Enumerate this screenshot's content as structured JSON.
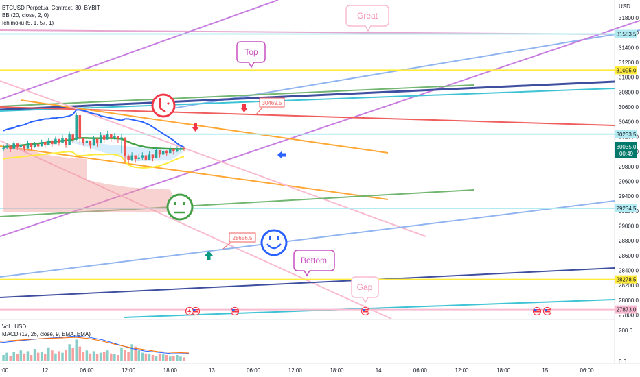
{
  "legend": {
    "symbol_line": "BTCUSD Perpetual Contract, 30, BYBIT",
    "bb_line": "BB (20, close, 2, 0)",
    "ichimoku_line": "Ichimoku (5, 1, 57, 1)",
    "vol_line": "Vol · USD",
    "macd_line": "MACD (12, 26, close, 9, EMA, EMA)"
  },
  "currency_label": "USD",
  "price_tag": {
    "value": "30035.0",
    "countdown": "00:49"
  },
  "callouts": [
    "Great",
    "Top",
    "Bottom",
    "Gap"
  ],
  "price_notes": [
    "30469.5",
    "28656.5"
  ],
  "colors": {
    "up": "#26a69a",
    "down": "#ef5350",
    "upper_band": "#2962ff",
    "mid_band": "#43a047",
    "lower_band": "#ffeb3b",
    "cloud": "#ef9a9a",
    "callout": "#c850c0",
    "great_callout": "#f48fb1",
    "price_tag": "#00796b"
  },
  "chart_data": {
    "type": "line",
    "symbol": "BTCUSD Perpetual Contract",
    "interval": "30",
    "exchange": "BYBIT",
    "price_axis": {
      "ticks": [
        31800,
        31600,
        31400,
        31200,
        31000,
        30800,
        30600,
        30400,
        30200,
        30000,
        29800,
        29600,
        29400,
        29200,
        29000,
        28800,
        28600,
        28400,
        28200,
        28000,
        27800
      ],
      "tick_labels": [
        "31800.0",
        "31600.0",
        "31400.0",
        "31200.0",
        "31000.0",
        "30800.0",
        "30600.0",
        "30400.0",
        "30200.0",
        "30000.0",
        "29800.0",
        "29600.0",
        "29400.0",
        "29200.0",
        "29000.0",
        "28800.0",
        "28600.0",
        "28400.0",
        "28200.0",
        "28000.0",
        "27800.0"
      ],
      "range": [
        27740,
        32040
      ]
    },
    "marked_levels": [
      {
        "label": "31583.5",
        "value": 31583.5,
        "color": "#b2ebf2"
      },
      {
        "label": "31095.0",
        "value": 31095.0,
        "color": "#ffeb3b"
      },
      {
        "label": "30233.5",
        "value": 30233.5,
        "color": "#b2ebf2"
      },
      {
        "label": "29234.5",
        "value": 29234.5,
        "color": "#b2ebf2"
      },
      {
        "label": "28278.5",
        "value": 28278.5,
        "color": "#ffeb3b"
      },
      {
        "label": "27873.0",
        "value": 27873.0,
        "color": "#f8bbd0"
      }
    ],
    "time_axis": {
      "labels": [
        ":00",
        "12",
        "06:00",
        "12:00",
        "18:00",
        "13",
        "06:00",
        "12:00",
        "18:00",
        "14",
        "06:00",
        "12:00",
        "18:00",
        "15",
        "06:00"
      ],
      "bar_index": [
        -1,
        12,
        24,
        36,
        48,
        60,
        72,
        84,
        96,
        108,
        120,
        132,
        144,
        156,
        168
      ],
      "bar_range": [
        -1,
        176
      ]
    },
    "candles": {
      "close": [
        30050,
        30080,
        30030,
        30110,
        30060,
        30090,
        30040,
        30120,
        30060,
        30100,
        30070,
        30130,
        30090,
        30150,
        30100,
        30170,
        30120,
        30180,
        30090,
        30230,
        30160,
        30490,
        30180,
        30120,
        30150,
        30080,
        30170,
        30110,
        30220,
        30160,
        30240,
        30180,
        30210,
        30170,
        30190,
        29940,
        29880,
        29950,
        29900,
        29920,
        29950,
        29880,
        29960,
        29910,
        30020,
        29960,
        30010,
        29980,
        30040,
        30000,
        30030,
        30045,
        30035
      ],
      "high": [
        30090,
        30110,
        30070,
        30140,
        30100,
        30120,
        30080,
        30150,
        30100,
        30130,
        30110,
        30160,
        30130,
        30180,
        30140,
        30200,
        30160,
        30220,
        30150,
        30270,
        30200,
        30520,
        30220,
        30170,
        30190,
        30130,
        30210,
        30150,
        30260,
        30200,
        30280,
        30220,
        30250,
        30210,
        30230,
        30020,
        29960,
        29990,
        29950,
        29970,
        29990,
        29930,
        30000,
        29960,
        30060,
        30010,
        30050,
        30020,
        30080,
        30040,
        30070,
        30060,
        30055
      ],
      "low": [
        30010,
        30030,
        29990,
        30060,
        30020,
        30040,
        30000,
        30070,
        30020,
        30050,
        30030,
        30080,
        30050,
        30110,
        30060,
        30120,
        30080,
        30140,
        30050,
        30160,
        30120,
        30150,
        30100,
        30080,
        30090,
        30040,
        30110,
        30060,
        30160,
        30110,
        30190,
        30130,
        30160,
        30120,
        29980,
        29860,
        29840,
        29870,
        29850,
        29870,
        29890,
        29850,
        29900,
        29870,
        29960,
        29920,
        29970,
        29940,
        29990,
        29960,
        29990,
        30000,
        30010
      ],
      "up_color": "#26a69a",
      "down_color": "#ef5350"
    },
    "bollinger": {
      "upper": [
        30280,
        30300,
        30310,
        30320,
        30340,
        30350,
        30360,
        30380,
        30400,
        30410,
        30420,
        30430,
        30440,
        30440,
        30450,
        30450,
        30460,
        30460,
        30470,
        30480,
        30500,
        30560,
        30560,
        30550,
        30540,
        30520,
        30510,
        30500,
        30480,
        30470,
        30460,
        30450,
        30440,
        30430,
        30420,
        30440,
        30440,
        30430,
        30420,
        30410,
        30400,
        30380,
        30360,
        30330,
        30300,
        30270,
        30240,
        30210,
        30180,
        30150,
        30110,
        30080,
        30060
      ],
      "basis": [
        30060,
        30065,
        30070,
        30075,
        30080,
        30085,
        30090,
        30095,
        30100,
        30105,
        30110,
        30115,
        30120,
        30125,
        30130,
        30135,
        30140,
        30145,
        30150,
        30155,
        30160,
        30180,
        30182,
        30182,
        30182,
        30180,
        30180,
        30178,
        30180,
        30180,
        30182,
        30180,
        30178,
        30175,
        30170,
        30150,
        30130,
        30110,
        30095,
        30080,
        30070,
        30060,
        30055,
        30050,
        30045,
        30042,
        30040,
        30038,
        30036,
        30035,
        30034,
        30034,
        30034
      ],
      "lower": [
        29900,
        29910,
        29915,
        29920,
        29925,
        29930,
        29935,
        29940,
        29945,
        29950,
        29955,
        29960,
        29965,
        29970,
        29975,
        29980,
        29985,
        29990,
        29995,
        30000,
        29990,
        29950,
        29945,
        29945,
        29950,
        29955,
        29960,
        29960,
        29960,
        29960,
        29965,
        29965,
        29960,
        29950,
        29930,
        29870,
        29820,
        29800,
        29790,
        29785,
        29780,
        29782,
        29785,
        29790,
        29800,
        29810,
        29825,
        29840,
        29860,
        29880,
        29900,
        29920,
        29935
      ]
    },
    "volume_pane": {
      "volume_ticks": [
        200.0,
        0.0
      ],
      "volume_tick_labels": [
        "200.0",
        "0.0"
      ],
      "volume": [
        40,
        55,
        35,
        60,
        45,
        70,
        50,
        65,
        40,
        80,
        55,
        60,
        45,
        90,
        70,
        50,
        65,
        55,
        75,
        110,
        85,
        140,
        95,
        60,
        70,
        50,
        65,
        45,
        55,
        60,
        70,
        50,
        45,
        40,
        90,
        75,
        60,
        110,
        95,
        70,
        55,
        50,
        45,
        40,
        35,
        50,
        45,
        40,
        30,
        35,
        40,
        30,
        25
      ]
    }
  }
}
